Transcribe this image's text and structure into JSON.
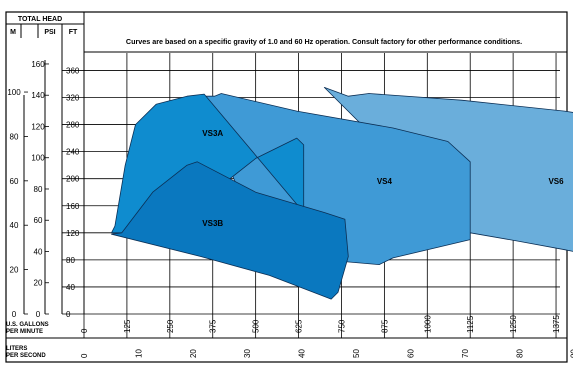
{
  "header": {
    "total_head": "TOTAL HEAD",
    "unit_m": "M",
    "unit_psi": "PSI",
    "unit_ft": "FT"
  },
  "note": "Curves are based on a specific gravity of 1.0 and 60 Hz operation. Consult factory for other performance conditions.",
  "axis_labels": {
    "gpm_line1": "U.S. GALLONS",
    "gpm_line2": "PER MINUTE",
    "lps_line1": "LITERS",
    "lps_line2": "PER SECOND"
  },
  "colors": {
    "vs6": "#6aaedb",
    "vs4": "#3f9ad6",
    "vs3a": "#0f8ccf",
    "vs3b": "#0a78bf",
    "grid": "#000000"
  },
  "chart_data": {
    "type": "area",
    "grid": true,
    "xlim_gpm": [
      0,
      2250
    ],
    "ylim_ft": [
      0,
      370
    ],
    "x_ticks_gpm": [
      0,
      125,
      250,
      375,
      500,
      625,
      750,
      875,
      1000,
      1125,
      1250,
      1375,
      1500,
      1625,
      1750,
      1875,
      2000,
      2125
    ],
    "x_ticks_lps": [
      0,
      10,
      20,
      30,
      40,
      50,
      60,
      70,
      80,
      90,
      100,
      110,
      120,
      130
    ],
    "y_ticks_ft": [
      0,
      40,
      80,
      120,
      160,
      200,
      240,
      280,
      320,
      360
    ],
    "y_ticks_psi": [
      0,
      20,
      40,
      60,
      80,
      100,
      120,
      140,
      160
    ],
    "y_ticks_m": [
      0,
      20,
      40,
      60,
      80,
      100
    ],
    "series": [
      {
        "name": "VS6",
        "color_key": "vs6",
        "label_at": [
          1375,
          192
        ],
        "polygon": [
          [
            770,
            322
          ],
          [
            830,
            326
          ],
          [
            1100,
            316
          ],
          [
            1400,
            300
          ],
          [
            1650,
            280
          ],
          [
            1830,
            244
          ],
          [
            1868,
            240
          ],
          [
            1885,
            225
          ],
          [
            1850,
            150
          ],
          [
            1740,
            77
          ],
          [
            1625,
            72
          ],
          [
            1400,
            95
          ],
          [
            1260,
            108
          ],
          [
            1125,
            120
          ],
          [
            700,
            335
          ]
        ]
      },
      {
        "name": "VS4",
        "color_key": "vs4",
        "label_at": [
          875,
          192
        ],
        "polygon": [
          [
            380,
            322
          ],
          [
            400,
            326
          ],
          [
            620,
            300
          ],
          [
            900,
            275
          ],
          [
            1060,
            255
          ],
          [
            1125,
            225
          ],
          [
            1125,
            110
          ],
          [
            900,
            83
          ],
          [
            860,
            73
          ],
          [
            700,
            80
          ],
          [
            600,
            95
          ],
          [
            480,
            150
          ],
          [
            330,
            322
          ]
        ]
      },
      {
        "name": "VS3A",
        "color_key": "vs3a",
        "label_at": [
          375,
          263
        ],
        "polygon": [
          [
            270,
            120
          ],
          [
            350,
            170
          ],
          [
            500,
            230
          ],
          [
            620,
            260
          ],
          [
            640,
            250
          ],
          [
            640,
            150
          ],
          [
            350,
            325
          ],
          [
            300,
            322
          ],
          [
            210,
            310
          ],
          [
            150,
            280
          ],
          [
            120,
            220
          ],
          [
            90,
            130
          ],
          [
            80,
            120
          ]
        ]
      },
      {
        "name": "VS3B",
        "color_key": "vs3b",
        "label_at": [
          375,
          130
        ],
        "polygon": [
          [
            80,
            118
          ],
          [
            340,
            85
          ],
          [
            540,
            57
          ],
          [
            720,
            22
          ],
          [
            740,
            32
          ],
          [
            770,
            85
          ],
          [
            760,
            140
          ],
          [
            700,
            150
          ],
          [
            500,
            180
          ],
          [
            330,
            225
          ],
          [
            300,
            220
          ],
          [
            200,
            180
          ],
          [
            110,
            120
          ]
        ]
      }
    ]
  }
}
